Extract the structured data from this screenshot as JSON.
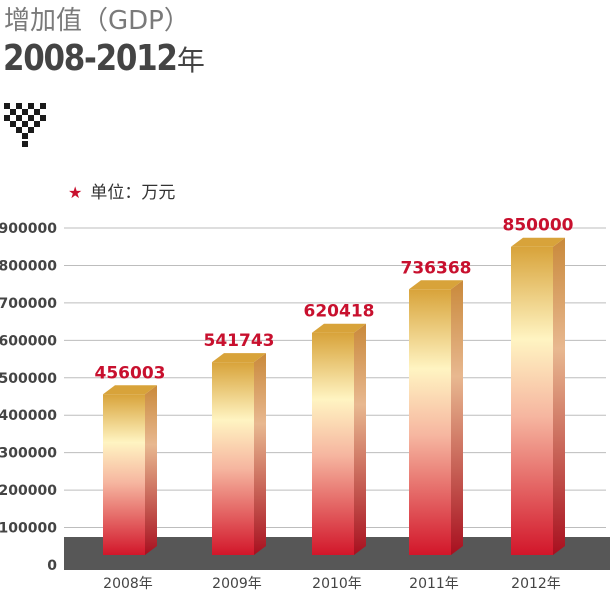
{
  "header": {
    "title_line1": "增加值（GDP）",
    "title_line2_years": "2008-2012",
    "title_line2_suffix": "年"
  },
  "unit_note": {
    "star_icon": "★",
    "text": "单位：万元"
  },
  "colors": {
    "bar_top": "#d8a33a",
    "bar_light": "#fff4c2",
    "bar_red": "#d2162a",
    "value_label": "#c8102e",
    "baseline_band": "#575757",
    "title_gray": "#7a7a7a",
    "title_dark": "#444444"
  },
  "chart_data": {
    "type": "bar",
    "categories": [
      "2008年",
      "2009年",
      "2010年",
      "2011年",
      "2012年"
    ],
    "values": [
      456003,
      541743,
      620418,
      736368,
      850000
    ],
    "value_labels": [
      "456003",
      "541743",
      "620418",
      "736368",
      "850000"
    ],
    "yticks": [
      "0",
      "100000",
      "200000",
      "300000",
      "400000",
      "500000",
      "600000",
      "700000",
      "800000",
      "900000"
    ],
    "ylim": [
      0,
      900000
    ],
    "title": "增加值（GDP）",
    "xlabel": "",
    "ylabel": "",
    "grid": true,
    "legend": "none"
  }
}
